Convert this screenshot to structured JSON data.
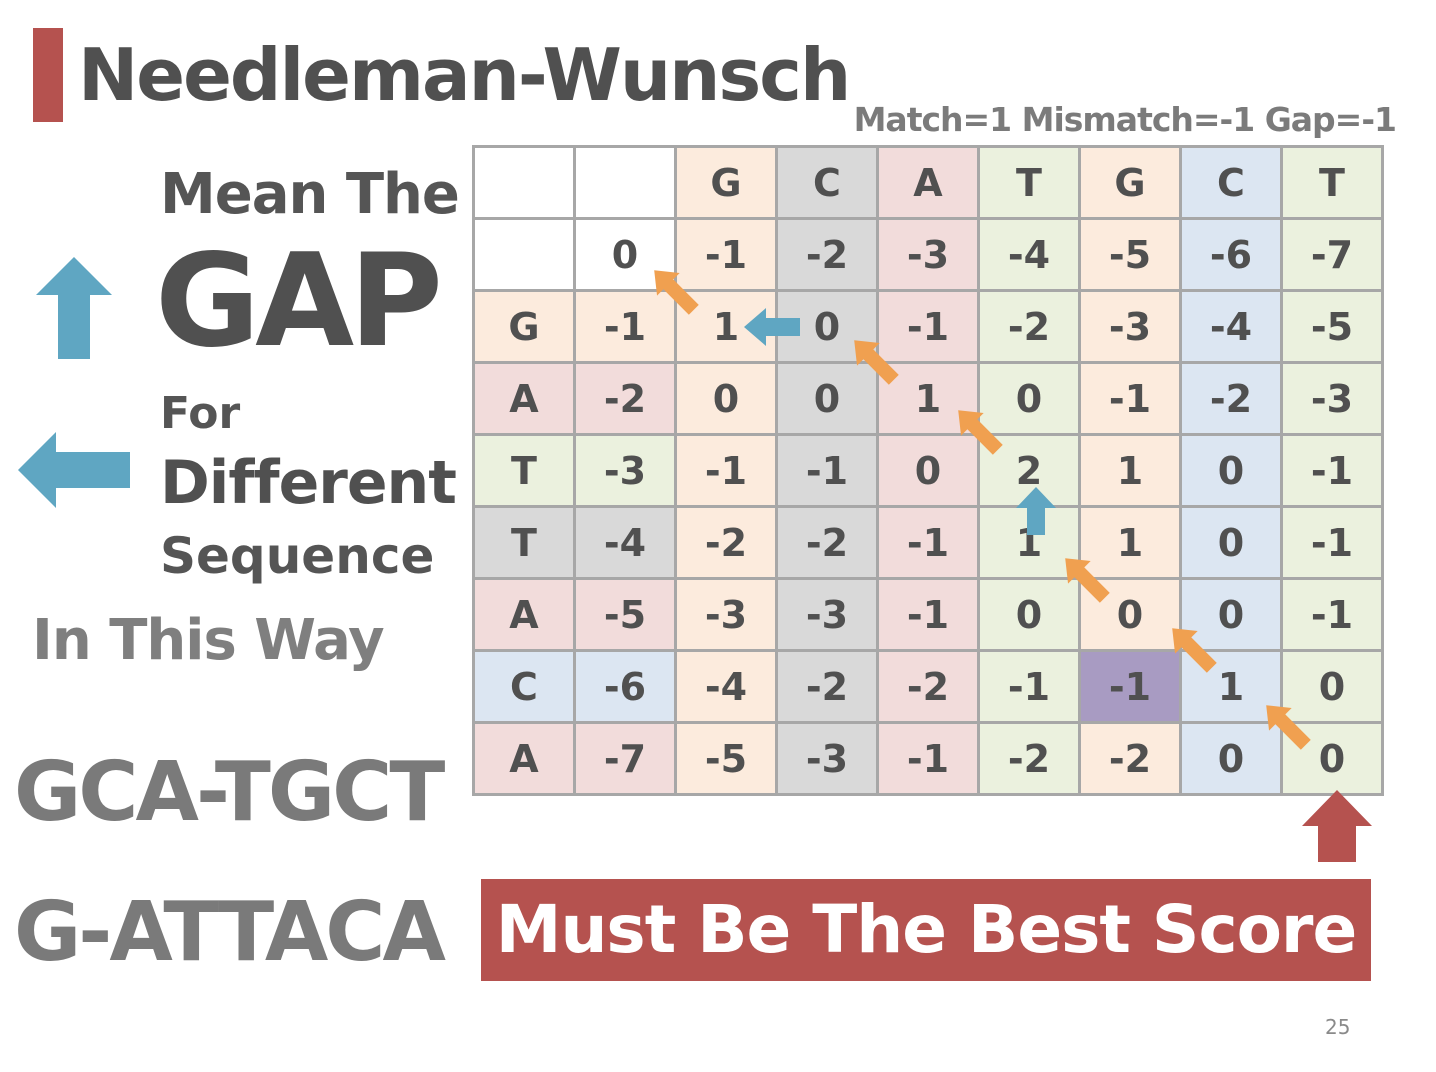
{
  "title": "Needleman-Wunsch",
  "params": "Match=1 Mismatch=-1 Gap=-1",
  "left_panel": {
    "mean_the": "Mean The",
    "gap": "GAP",
    "for": "For",
    "different": "Different",
    "sequence": "Sequence",
    "in_this_way": "In This Way",
    "icons": [
      "arrow-up-icon",
      "arrow-left-icon"
    ]
  },
  "alignment": {
    "line1": "GCA-TGCT",
    "line2": "G-ATTACA"
  },
  "matrix": {
    "header": [
      "",
      "",
      "G",
      "C",
      "A",
      "T",
      "G",
      "C",
      "T"
    ],
    "rows": [
      {
        "label": "",
        "values": [
          "0",
          "-1",
          "-2",
          "-3",
          "-4",
          "-5",
          "-6",
          "-7"
        ]
      },
      {
        "label": "G",
        "values": [
          "-1",
          "1",
          "0",
          "-1",
          "-2",
          "-3",
          "-4",
          "-5"
        ]
      },
      {
        "label": "A",
        "values": [
          "-2",
          "0",
          "0",
          "1",
          "0",
          "-1",
          "-2",
          "-3"
        ]
      },
      {
        "label": "T",
        "values": [
          "-3",
          "-1",
          "-1",
          "0",
          "2",
          "1",
          "0",
          "-1"
        ]
      },
      {
        "label": "T",
        "values": [
          "-4",
          "-2",
          "-2",
          "-1",
          "1",
          "1",
          "0",
          "-1"
        ]
      },
      {
        "label": "A",
        "values": [
          "-5",
          "-3",
          "-3",
          "-1",
          "0",
          "0",
          "0",
          "-1"
        ]
      },
      {
        "label": "C",
        "values": [
          "-6",
          "-4",
          "-2",
          "-2",
          "-1",
          "-1",
          "1",
          "0"
        ]
      },
      {
        "label": "A",
        "values": [
          "-7",
          "-5",
          "-3",
          "-1",
          "-2",
          "-2",
          "0",
          "0"
        ]
      }
    ],
    "path_highlighted_cells": [
      [
        6,
        6
      ],
      [
        8,
        8
      ]
    ],
    "colors": {
      "G": "#fcebdd",
      "C_header": "#d9d9d9",
      "A": "#f2dcdb",
      "T": "#ebf1de",
      "C": "#dce6f2",
      "T_row": "#d9d9d9",
      "highlight": "#a89bc2",
      "diag_arrow": "#f0a050",
      "gap_arrow": "#5fa6c2",
      "accent": "#b5524f"
    }
  },
  "banner": "Must Be The Best Score",
  "page_number": "25"
}
